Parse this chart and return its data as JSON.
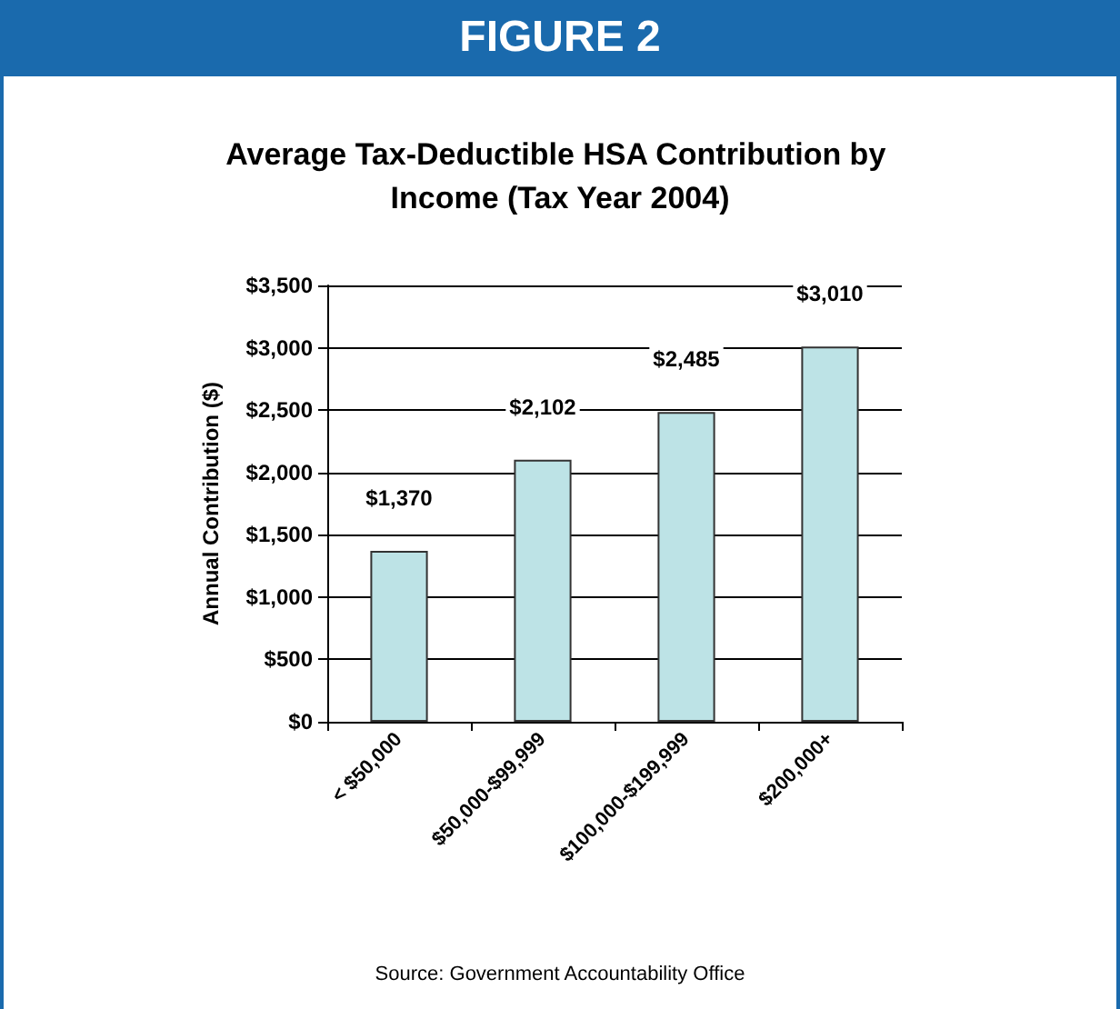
{
  "chart_data": {
    "type": "bar",
    "title": "Average Tax-Deductible HSA Contribution by Income (Tax Year 2004)",
    "ylabel": "Annual Contribution ($)",
    "categories": [
      "< $50,000",
      "$50,000-$99,999",
      "$100,000-$199,999",
      "$200,000+"
    ],
    "values": [
      1370,
      2102,
      2485,
      3010
    ],
    "color": "#bde3e6",
    "value_labels": [
      "$1,370",
      "$2,102",
      "$2,485",
      "$3,010"
    ],
    "ylim": [
      0,
      3500
    ],
    "yticks": [
      {
        "value": 0,
        "label": "$0"
      },
      {
        "value": 500,
        "label": "$500"
      },
      {
        "value": 1000,
        "label": "$1,000"
      },
      {
        "value": 1500,
        "label": "$1,500"
      },
      {
        "value": 2000,
        "label": "$2,000"
      },
      {
        "value": 2500,
        "label": "$2,500"
      },
      {
        "value": 3000,
        "label": "$3,000"
      },
      {
        "value": 3500,
        "label": "$3,500"
      }
    ],
    "grid": "y",
    "annotations": [
      "FIGURE 2",
      "Source: Government Accountability Office"
    ]
  }
}
